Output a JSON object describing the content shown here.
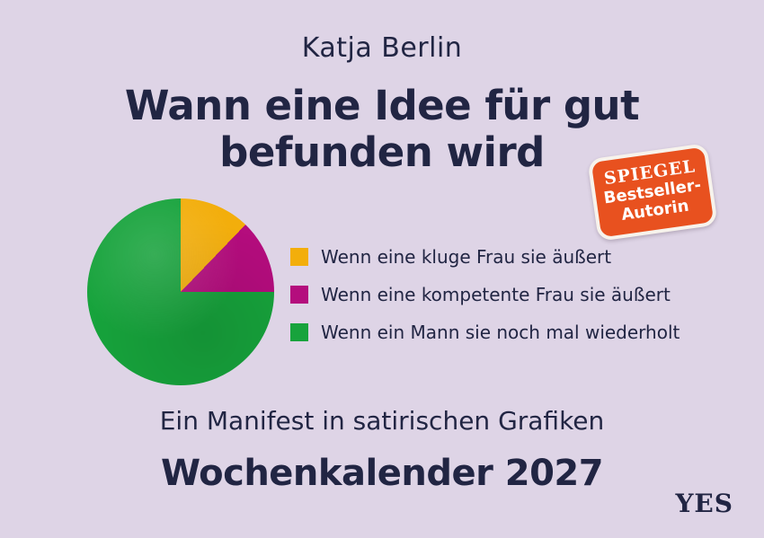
{
  "page": {
    "background_color": "#ded4e6",
    "text_color": "#212543"
  },
  "author": "Katja Berlin",
  "title": {
    "line1": "Wann eine Idee für gut",
    "line2": "befunden wird"
  },
  "badge": {
    "line1": "SPIEGEL",
    "line2": "Bestseller-",
    "line3": "Autorin",
    "background": "#e8511f",
    "text_color": "#ffffff",
    "border_color": "#f7f3ec"
  },
  "chart_data": {
    "type": "pie",
    "title": "Wann eine Idee für gut befunden wird",
    "start_angle_deg": 0,
    "direction": "clockwise",
    "legend_position": "right",
    "slices": [
      {
        "label": "Wenn eine kluge Frau sie äußert",
        "value": 12.2,
        "color": "#f3ae0b"
      },
      {
        "label": "Wenn eine kompetente Frau sie äußert",
        "value": 12.8,
        "color": "#b40d7d"
      },
      {
        "label": "Wenn ein Mann sie noch mal wiederholt",
        "value": 75.0,
        "color": "#17a33c"
      }
    ]
  },
  "subtitle": "Ein Manifest in satirischen Grafiken",
  "edition": "Wochenkalender 2027",
  "publisher": "YES"
}
